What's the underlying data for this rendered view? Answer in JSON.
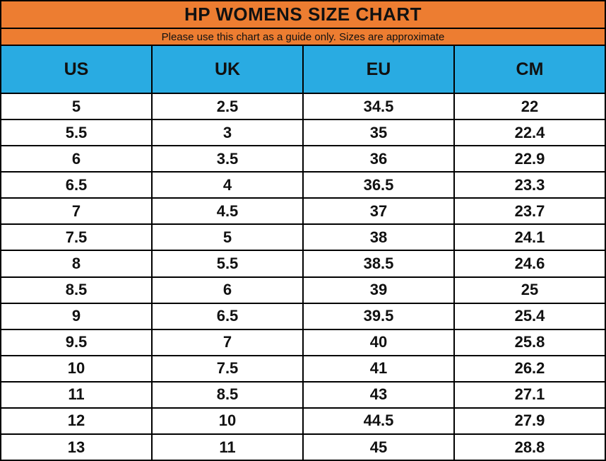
{
  "title": "HP WOMENS SIZE CHART",
  "subtitle": "Please use this chart as a guide only. Sizes are approximate",
  "colors": {
    "title_band": "#ED7D31",
    "header_band": "#29ABE2",
    "border": "#000000",
    "text": "#111111",
    "row_background": "#FFFFFF"
  },
  "chart_data": {
    "type": "table",
    "title": "HP WOMENS SIZE CHART",
    "subtitle": "Please use this chart as a guide only. Sizes are approximate",
    "columns": [
      "US",
      "UK",
      "EU",
      "CM"
    ],
    "rows": [
      [
        "5",
        "2.5",
        "34.5",
        "22"
      ],
      [
        "5.5",
        "3",
        "35",
        "22.4"
      ],
      [
        "6",
        "3.5",
        "36",
        "22.9"
      ],
      [
        "6.5",
        "4",
        "36.5",
        "23.3"
      ],
      [
        "7",
        "4.5",
        "37",
        "23.7"
      ],
      [
        "7.5",
        "5",
        "38",
        "24.1"
      ],
      [
        "8",
        "5.5",
        "38.5",
        "24.6"
      ],
      [
        "8.5",
        "6",
        "39",
        "25"
      ],
      [
        "9",
        "6.5",
        "39.5",
        "25.4"
      ],
      [
        "9.5",
        "7",
        "40",
        "25.8"
      ],
      [
        "10",
        "7.5",
        "41",
        "26.2"
      ],
      [
        "11",
        "8.5",
        "43",
        "27.1"
      ],
      [
        "12",
        "10",
        "44.5",
        "27.9"
      ],
      [
        "13",
        "11",
        "45",
        "28.8"
      ]
    ]
  }
}
